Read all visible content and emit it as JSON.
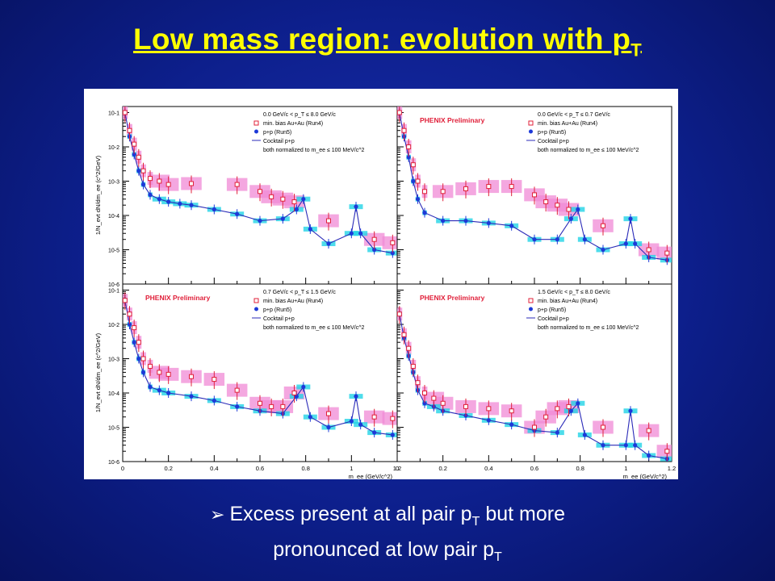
{
  "slide": {
    "title_main": "Low mass region: evolution with p",
    "title_sub": "T",
    "bullet_line1_a": "Excess present at all pair p",
    "bullet_line1_sub": "T",
    "bullet_line1_b": " but more",
    "bullet_line2_a": "pronounced at low pair p",
    "bullet_line2_sub": "T",
    "bullet_marker": "➢"
  },
  "chart_data": {
    "type": "scatter",
    "xlabel": "m_ee (GeV/c^2)",
    "ylabel": "1/N_evt dN/dm_ee (c^2/GeV)",
    "xlim": [
      0,
      1.2
    ],
    "ylim": [
      1e-06,
      0.15
    ],
    "yscale": "log",
    "x_ticks": [
      "0",
      "0.2",
      "0.4",
      "0.6",
      "0.8",
      "1",
      "1.2"
    ],
    "y_ticks": [
      "10^-6",
      "10^-5",
      "10^-4",
      "10^-3",
      "10^-2",
      "10^-1"
    ],
    "legend_entries": [
      "min. bias Au+Au (Run4)",
      "p+p (Run5)",
      "Cocktail p+p",
      "both normalized to m_ee ≤ 100 MeV/c^2"
    ],
    "panels": [
      {
        "id": "top-left",
        "pt_range": "0.0 GeV/c < p_T ≤ 8.0 GeV/c",
        "preliminary": "",
        "auau_x": [
          0.01,
          0.03,
          0.05,
          0.07,
          0.09,
          0.12,
          0.16,
          0.2,
          0.3,
          0.5,
          0.6,
          0.65,
          0.7,
          0.75,
          0.9,
          1.1,
          1.18
        ],
        "auau_y": [
          0.1,
          0.03,
          0.012,
          0.005,
          0.002,
          0.0012,
          0.001,
          0.0008,
          0.00085,
          0.0008,
          0.0005,
          0.00035,
          0.0003,
          0.00025,
          7e-05,
          2e-05,
          1.6e-05
        ],
        "pp_x": [
          0.01,
          0.03,
          0.05,
          0.07,
          0.09,
          0.12,
          0.16,
          0.2,
          0.25,
          0.3,
          0.4,
          0.5,
          0.6,
          0.7,
          0.76,
          0.79,
          0.82,
          0.9,
          1.0,
          1.02,
          1.04,
          1.1,
          1.18
        ],
        "pp_y": [
          0.1,
          0.02,
          0.006,
          0.002,
          0.0008,
          0.0004,
          0.0003,
          0.00025,
          0.00022,
          0.0002,
          0.00015,
          0.00011,
          7e-05,
          8e-05,
          0.00015,
          0.0003,
          4e-05,
          1.5e-05,
          3e-05,
          0.00018,
          3e-05,
          1e-05,
          8e-06
        ]
      },
      {
        "id": "top-right",
        "pt_range": "0.0 GeV/c < p_T ≤ 0.7 GeV/c",
        "preliminary": "PHENIX Preliminary",
        "auau_x": [
          0.01,
          0.03,
          0.05,
          0.07,
          0.09,
          0.12,
          0.2,
          0.3,
          0.4,
          0.5,
          0.6,
          0.65,
          0.7,
          0.75,
          0.9,
          1.1,
          1.18
        ],
        "auau_y": [
          0.1,
          0.03,
          0.01,
          0.003,
          0.001,
          0.0005,
          0.0005,
          0.0006,
          0.0007,
          0.0007,
          0.0004,
          0.00025,
          0.0002,
          0.00015,
          5e-05,
          1e-05,
          8e-06
        ],
        "pp_x": [
          0.01,
          0.03,
          0.05,
          0.07,
          0.09,
          0.12,
          0.2,
          0.3,
          0.4,
          0.5,
          0.6,
          0.7,
          0.76,
          0.79,
          0.82,
          0.9,
          1.0,
          1.02,
          1.04,
          1.1,
          1.18
        ],
        "pp_y": [
          0.1,
          0.02,
          0.005,
          0.001,
          0.0003,
          0.00012,
          7e-05,
          7e-05,
          6e-05,
          5e-05,
          2e-05,
          2e-05,
          8e-05,
          0.00015,
          2e-05,
          1e-05,
          1.5e-05,
          8e-05,
          1.5e-05,
          6e-06,
          5e-06
        ]
      },
      {
        "id": "bottom-left",
        "pt_range": "0.7 GeV/c < p_T ≤ 1.5 GeV/c",
        "preliminary": "PHENIX Preliminary",
        "auau_x": [
          0.01,
          0.03,
          0.05,
          0.07,
          0.09,
          0.12,
          0.16,
          0.2,
          0.3,
          0.4,
          0.5,
          0.6,
          0.65,
          0.7,
          0.75,
          0.9,
          1.1,
          1.18
        ],
        "auau_y": [
          0.05,
          0.02,
          0.008,
          0.003,
          0.001,
          0.0006,
          0.0004,
          0.00035,
          0.0003,
          0.00025,
          0.00012,
          5e-05,
          4e-05,
          4e-05,
          0.0001,
          2.5e-05,
          2e-05,
          1.8e-05
        ],
        "pp_x": [
          0.01,
          0.03,
          0.05,
          0.07,
          0.09,
          0.12,
          0.16,
          0.2,
          0.3,
          0.4,
          0.5,
          0.6,
          0.7,
          0.76,
          0.79,
          0.82,
          0.9,
          1.0,
          1.02,
          1.04,
          1.1,
          1.18
        ],
        "pp_y": [
          0.05,
          0.01,
          0.003,
          0.001,
          0.0004,
          0.00015,
          0.00012,
          0.0001,
          8e-05,
          6e-05,
          4e-05,
          3e-05,
          2.5e-05,
          8e-05,
          0.00015,
          2e-05,
          1e-05,
          1.5e-05,
          8e-05,
          1.2e-05,
          7e-06,
          6e-06
        ]
      },
      {
        "id": "bottom-right",
        "pt_range": "1.5 GeV/c < p_T ≤ 8.0 GeV/c",
        "preliminary": "PHENIX Preliminary",
        "auau_x": [
          0.01,
          0.03,
          0.05,
          0.07,
          0.09,
          0.12,
          0.16,
          0.2,
          0.3,
          0.4,
          0.5,
          0.6,
          0.65,
          0.7,
          0.75,
          0.9,
          1.1,
          1.18
        ],
        "auau_y": [
          0.02,
          0.005,
          0.002,
          0.0006,
          0.0002,
          0.0001,
          7e-05,
          5e-05,
          4e-05,
          3.5e-05,
          3e-05,
          1e-05,
          2e-05,
          3.5e-05,
          4e-05,
          1e-05,
          8e-06,
          2e-06
        ],
        "pp_x": [
          0.01,
          0.03,
          0.05,
          0.07,
          0.09,
          0.12,
          0.16,
          0.2,
          0.3,
          0.4,
          0.5,
          0.6,
          0.7,
          0.76,
          0.79,
          0.82,
          0.9,
          1.0,
          1.02,
          1.04,
          1.1,
          1.18
        ],
        "pp_y": [
          0.02,
          0.004,
          0.0012,
          0.0004,
          0.00012,
          5e-05,
          4e-05,
          3e-05,
          2.2e-05,
          1.6e-05,
          1.2e-05,
          8e-06,
          7e-06,
          3e-05,
          5e-05,
          6e-06,
          3e-06,
          3e-06,
          3e-05,
          3e-06,
          1.5e-06,
          1.2e-06
        ]
      }
    ]
  }
}
